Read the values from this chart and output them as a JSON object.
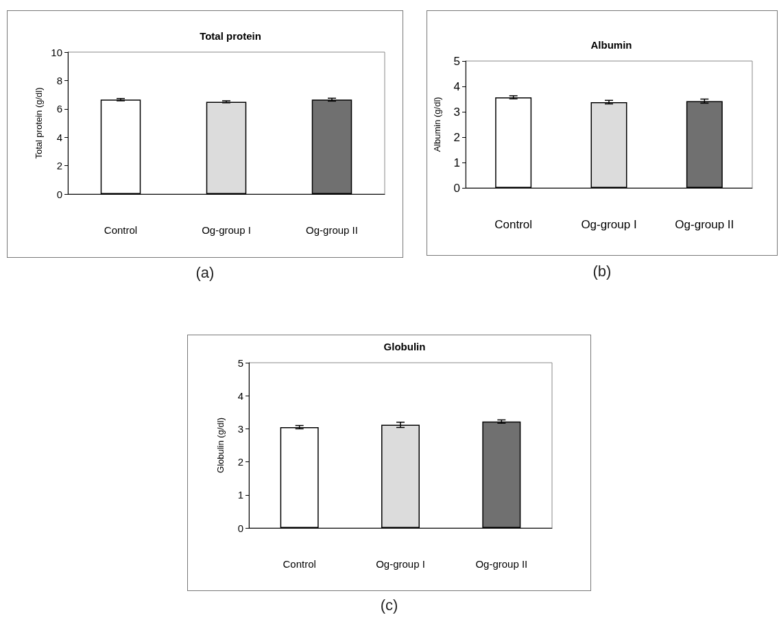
{
  "chart_data": [
    {
      "type": "bar",
      "title": "Total protein",
      "ylabel": "Total protein (g/dl)",
      "categories": [
        "Control",
        "Og-group I",
        "Og-group II"
      ],
      "values": [
        6.65,
        6.5,
        6.65
      ],
      "errors": [
        0.08,
        0.07,
        0.1
      ],
      "colors": [
        "#ffffff",
        "#dcdcdc",
        "#707070"
      ],
      "ylim": [
        0,
        10
      ],
      "yticks": [
        0,
        2,
        4,
        6,
        8,
        10
      ],
      "grid": false,
      "annotations": [
        "(a)"
      ]
    },
    {
      "type": "bar",
      "title": "Albumin",
      "ylabel": "Albumin (g/dl)",
      "categories": [
        "Control",
        "Og-group I",
        "Og-group II"
      ],
      "values": [
        3.57,
        3.38,
        3.42
      ],
      "errors": [
        0.06,
        0.07,
        0.08
      ],
      "colors": [
        "#ffffff",
        "#dcdcdc",
        "#707070"
      ],
      "ylim": [
        0,
        5
      ],
      "yticks": [
        0,
        1,
        2,
        3,
        4,
        5
      ],
      "grid": false,
      "annotations": [
        "(b)"
      ]
    },
    {
      "type": "bar",
      "title": "Globulin",
      "ylabel": "Globulin (g/dl)",
      "categories": [
        "Control",
        "Og-group I",
        "Og-group II"
      ],
      "values": [
        3.05,
        3.12,
        3.22
      ],
      "errors": [
        0.05,
        0.08,
        0.05
      ],
      "colors": [
        "#ffffff",
        "#dcdcdc",
        "#707070"
      ],
      "ylim": [
        0,
        5
      ],
      "yticks": [
        0,
        1,
        2,
        3,
        4,
        5
      ],
      "grid": false,
      "annotations": [
        "(c)"
      ]
    }
  ]
}
